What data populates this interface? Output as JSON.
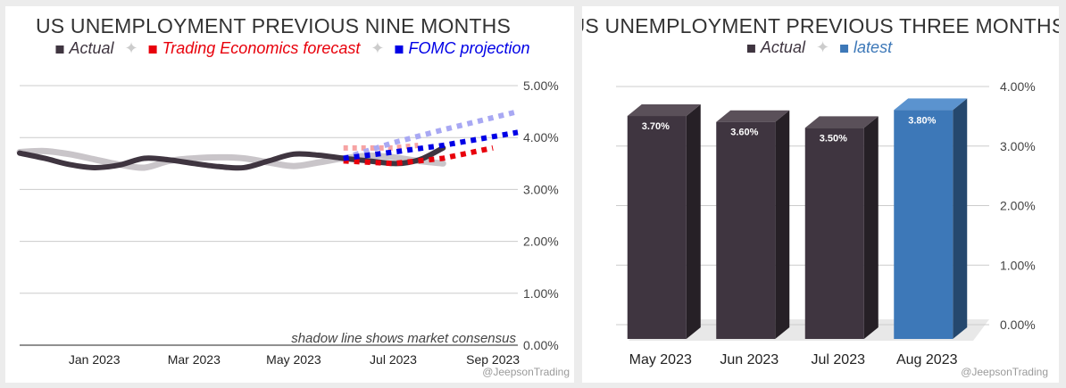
{
  "chart_data": [
    {
      "type": "line",
      "title": "US UNEMPLOYMENT PREVIOUS NINE MONTHS",
      "legend": [
        {
          "label": "Actual",
          "color": "#3f3540"
        },
        {
          "label": "Trading Economics forecast",
          "color": "#e8000b"
        },
        {
          "label": "FOMC projection",
          "color": "#0000e6"
        }
      ],
      "legend_separator": "✦",
      "ylim": [
        0,
        5
      ],
      "y_ticks": [
        0,
        1,
        2,
        3,
        4,
        5
      ],
      "y_tick_labels": [
        "0.00%",
        "1.00%",
        "2.00%",
        "3.00%",
        "4.00%",
        "5.00%"
      ],
      "x_tick_labels": [
        "Jan 2023",
        "Mar 2023",
        "May 2023",
        "Jul 2023",
        "Sep 2023"
      ],
      "xlim": [
        -0.5,
        9.5
      ],
      "x_ticks": [
        1,
        3,
        5,
        7,
        9
      ],
      "series": [
        {
          "name": "Actual",
          "x": [
            -0.5,
            0,
            0.5,
            1,
            1.5,
            2,
            2.5,
            3,
            3.5,
            4,
            4.5,
            5,
            5.5,
            6,
            6.5,
            7,
            7.3,
            7.6,
            8
          ],
          "values": [
            3.7,
            3.6,
            3.48,
            3.42,
            3.47,
            3.6,
            3.57,
            3.5,
            3.44,
            3.42,
            3.55,
            3.68,
            3.66,
            3.6,
            3.55,
            3.5,
            3.52,
            3.6,
            3.8
          ]
        },
        {
          "name": "Market consensus (shadow)",
          "x": [
            -0.5,
            0,
            0.5,
            1,
            1.5,
            2,
            2.5,
            3,
            3.5,
            4,
            4.5,
            5,
            5.5,
            6,
            6.5,
            7,
            7.5,
            8
          ],
          "values": [
            3.72,
            3.74,
            3.68,
            3.58,
            3.48,
            3.42,
            3.55,
            3.6,
            3.62,
            3.6,
            3.52,
            3.45,
            3.52,
            3.6,
            3.65,
            3.62,
            3.55,
            3.5
          ]
        },
        {
          "name": "Trading Economics forecast",
          "x": [
            6,
            7,
            8,
            9
          ],
          "values": [
            3.55,
            3.5,
            3.6,
            3.8
          ]
        },
        {
          "name": "Trading Economics forecast (consensus)",
          "x": [
            6,
            7,
            7.5
          ],
          "values": [
            3.8,
            3.8,
            3.85
          ]
        },
        {
          "name": "FOMC projection",
          "x": [
            6,
            7,
            8,
            9.5
          ],
          "values": [
            3.6,
            3.72,
            3.85,
            4.1
          ]
        },
        {
          "name": "FOMC projection (consensus)",
          "x": [
            6,
            7,
            8,
            9.5
          ],
          "values": [
            3.6,
            3.9,
            4.15,
            4.5
          ]
        }
      ],
      "annotation": "shadow line shows market consensus",
      "watermark": "@JeepsonTrading"
    },
    {
      "type": "bar",
      "title": "US UNEMPLOYMENT PREVIOUS THREE MONTHS",
      "legend": [
        {
          "label": "Actual",
          "color": "#3f3540"
        },
        {
          "label": "latest",
          "color": "#3d78b8"
        }
      ],
      "legend_separator": "✦",
      "categories": [
        "May 2023",
        "Jun 2023",
        "Jul 2023",
        "Aug 2023"
      ],
      "values": [
        3.7,
        3.6,
        3.5,
        3.8
      ],
      "value_labels": [
        "3.70%",
        "3.60%",
        "3.50%",
        "3.80%"
      ],
      "colors": [
        "#3f3540",
        "#3f3540",
        "#3f3540",
        "#3d78b8"
      ],
      "ylim": [
        0,
        4
      ],
      "y_ticks": [
        0,
        1,
        2,
        3,
        4
      ],
      "y_tick_labels": [
        "0.00%",
        "1.00%",
        "2.00%",
        "3.00%",
        "4.00%"
      ],
      "watermark": "@JeepsonTrading"
    }
  ]
}
